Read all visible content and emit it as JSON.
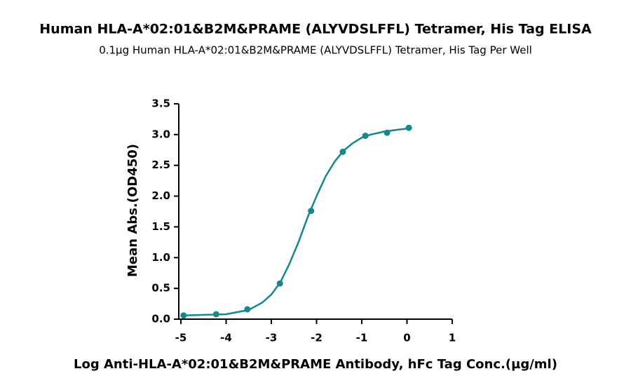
{
  "chart_data": {
    "type": "scatter",
    "title": "Human HLA-A*02:01&B2M&PRAME (ALYVDSLFFL) Tetramer, His Tag ELISA",
    "subtitle": "0.1µg Human HLA-A*02:01&B2M&PRAME (ALYVDSLFFL) Tetramer, His Tag Per Well",
    "x_label": "Log Anti-HLA-A*02:01&B2M&PRAME Antibody, hFc Tag Conc.(µg/ml)",
    "y_label": "Mean Abs.(OD450)",
    "xlim": [
      -5,
      1
    ],
    "xticks": [
      -5,
      -4,
      -3,
      -2,
      -1,
      0,
      1
    ],
    "ylim": [
      0,
      3.5
    ],
    "yticks": [
      {
        "value": 0,
        "label": "0.0"
      },
      0.5,
      {
        "value": 1,
        "label": "1.0"
      },
      1.5,
      {
        "value": 2,
        "label": "2.0"
      },
      2.5,
      {
        "value": 3,
        "label": "3.0"
      },
      3.5
    ],
    "series": [
      {
        "type": "line",
        "color": "#16878a",
        "x": [
          -4.94,
          -4.5,
          -4,
          -3.5,
          -3.2,
          -3,
          -2.8,
          -2.6,
          -2.4,
          -2.2,
          -2,
          -1.8,
          -1.6,
          -1.4,
          -1.2,
          -1,
          -0.8,
          -0.5,
          -0.2,
          0.04
        ],
        "values": [
          0.06,
          0.07,
          0.08,
          0.15,
          0.27,
          0.4,
          0.6,
          0.9,
          1.25,
          1.65,
          2.0,
          2.32,
          2.56,
          2.74,
          2.86,
          2.95,
          3.0,
          3.05,
          3.08,
          3.1
        ]
      },
      {
        "type": "scatter",
        "color": "#16878a",
        "x": [
          -4.94,
          -4.22,
          -3.53,
          -2.81,
          -2.12,
          -1.42,
          -0.92,
          -0.44,
          0.04
        ],
        "values": [
          0.06,
          0.08,
          0.16,
          0.58,
          1.76,
          2.72,
          2.98,
          3.03,
          3.11
        ]
      }
    ]
  }
}
